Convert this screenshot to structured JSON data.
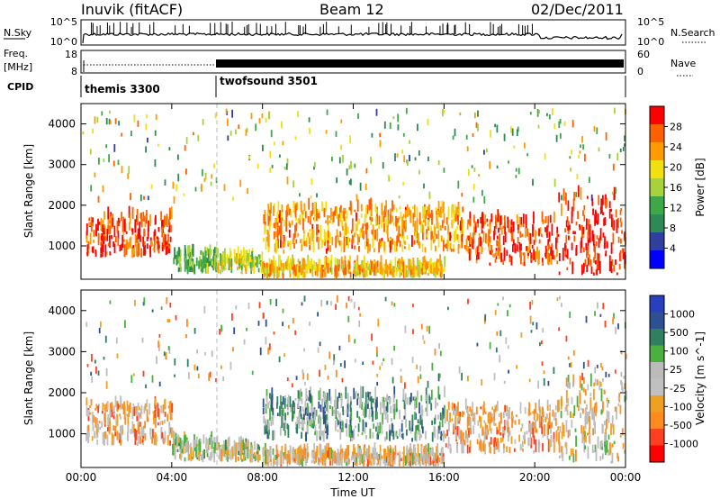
{
  "header": {
    "station": "Inuvik (fitACF)",
    "beam": "Beam 12",
    "date": "02/Dec/2011"
  },
  "status_panels": {
    "nsky_label": "N.Sky",
    "nsky_top": "10^5",
    "nsky_bottom": "10^0",
    "nsearch_label": "N.Search",
    "freq_label": "Freq.",
    "freq_unit": "[MHz]",
    "freq_top": "18",
    "freq_bottom": "8",
    "nave_label": "Nave",
    "nave_top": "60",
    "nave_bottom": "0",
    "cpid_label": "CPID",
    "cpid_programs": [
      {
        "name": "themis 3300",
        "start_hour": 0
      },
      {
        "name": "twofsound 3501",
        "start_hour": 6
      }
    ]
  },
  "x_axis": {
    "label": "Time UT",
    "ticks": [
      "00:00",
      "04:00",
      "08:00",
      "12:00",
      "16:00",
      "20:00",
      "00:00"
    ],
    "range_hours": [
      0,
      24
    ]
  },
  "colors": {
    "power_scale": [
      "#0000ff",
      "#2e3fa0",
      "#2d8a54",
      "#3ea848",
      "#a8d23a",
      "#f0e010",
      "#ff9a00",
      "#ff6000",
      "#ff0000"
    ],
    "velocity_scale": [
      "#2840c0",
      "#2d5090",
      "#2f8060",
      "#4ab040",
      "#bbbbbb",
      "#c0c0c0",
      "#f0a020",
      "#ff8a20",
      "#ff4020",
      "#ff0000"
    ]
  },
  "chart_data": [
    {
      "type": "heatmap",
      "name": "power",
      "ylabel": "Slant Range [km]",
      "ylim": [
        180,
        4500
      ],
      "yticks": [
        "1000",
        "2000",
        "3000",
        "4000"
      ],
      "colorbar_label": "Power [dB]",
      "colorbar_ticks": [
        "4",
        "8",
        "12",
        "16",
        "20",
        "24",
        "28"
      ],
      "colorbar_range": [
        0,
        30
      ],
      "bands": [
        {
          "t": [
            0.2,
            4.0
          ],
          "r": [
            700,
            1700
          ],
          "value": 26
        },
        {
          "t": [
            4.0,
            6.0
          ],
          "r": [
            300,
            800
          ],
          "value": 12
        },
        {
          "t": [
            6.0,
            8.0
          ],
          "r": [
            300,
            700
          ],
          "value": 16
        },
        {
          "t": [
            8.0,
            17.0
          ],
          "r": [
            800,
            1900
          ],
          "value": 22
        },
        {
          "t": [
            8.0,
            16.0
          ],
          "r": [
            200,
            500
          ],
          "value": 20
        },
        {
          "t": [
            17.0,
            21.0
          ],
          "r": [
            500,
            1600
          ],
          "value": 26
        },
        {
          "t": [
            21.0,
            24.0
          ],
          "r": [
            250,
            2200
          ],
          "value": 28
        }
      ]
    },
    {
      "type": "heatmap",
      "name": "velocity",
      "ylabel": "Slant Range [km]",
      "ylim": [
        180,
        4500
      ],
      "yticks": [
        "1000",
        "2000",
        "3000",
        "4000"
      ],
      "colorbar_label": "Velocity [m s^-1]",
      "colorbar_ticks": [
        "1000",
        "500",
        "100",
        "25",
        "-25",
        "-100",
        "-500",
        "-1000"
      ],
      "bands": [
        {
          "t": [
            0.2,
            4.0
          ],
          "r": [
            700,
            1700
          ],
          "value": -300
        },
        {
          "t": [
            4.0,
            6.0
          ],
          "r": [
            300,
            800
          ],
          "value": 50
        },
        {
          "t": [
            6.0,
            8.0
          ],
          "r": [
            300,
            700
          ],
          "value": 0
        },
        {
          "t": [
            8.0,
            16.0
          ],
          "r": [
            800,
            1900
          ],
          "value": 300
        },
        {
          "t": [
            8.0,
            16.0
          ],
          "r": [
            200,
            500
          ],
          "value": -200
        },
        {
          "t": [
            16.0,
            21.0
          ],
          "r": [
            500,
            1600
          ],
          "value": -300
        },
        {
          "t": [
            21.0,
            24.0
          ],
          "r": [
            250,
            2200
          ],
          "value": -150
        }
      ]
    }
  ]
}
